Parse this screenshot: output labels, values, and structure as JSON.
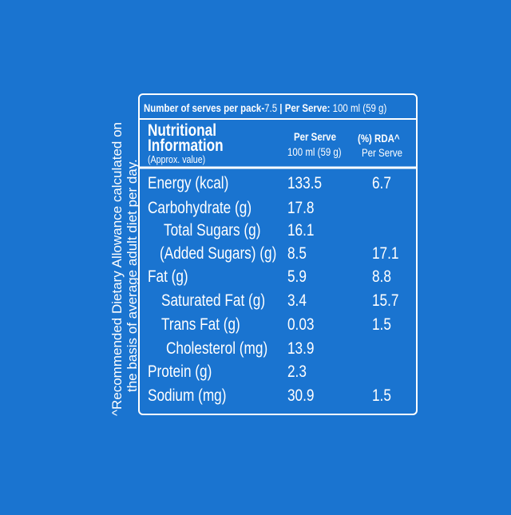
{
  "header": {
    "serves_label": "Number of serves per pack-",
    "serves_value": "7.5",
    "per_serve_label": " | Per Serve: ",
    "per_serve_value": "100 ml (59 g)"
  },
  "columns": {
    "title_line1": "Nutritional",
    "title_line2": "Information",
    "title_note": "(Approx. value)",
    "per_serve": "Per Serve",
    "per_serve_unit": "100 ml (59 g)",
    "rda": "(%) RDA^",
    "rda_unit": "Per Serve"
  },
  "rows": [
    [
      "Energy (kcal)",
      "133.5",
      "6.7"
    ],
    [
      "Carbohydrate (g)",
      "17.8"
    ],
    [
      "Total Sugars (g)",
      "16.1"
    ],
    [
      "(Added Sugars) (g)",
      "8.5",
      "17.1"
    ],
    [
      "Fat (g)",
      "5.9",
      "8.8"
    ],
    [
      "Saturated Fat (g)",
      "3.4",
      "15.7"
    ],
    [
      "Trans Fat (g)",
      "0.03",
      "1.5"
    ],
    [
      "Cholesterol (mg)",
      "13.9"
    ],
    [
      "Protein (g)",
      "2.3"
    ],
    [
      "Sodium (mg)",
      "30.9",
      "1.5"
    ]
  ],
  "footnote": {
    "line1": "^Recommended Dietary Allowance calculated on",
    "line2": "the basis of average adult diet per day."
  }
}
